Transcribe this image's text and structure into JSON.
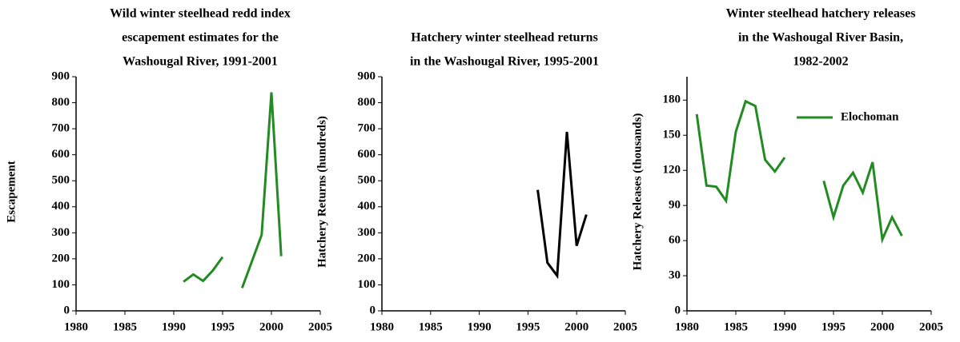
{
  "chart_data": [
    {
      "type": "line",
      "title": [
        "Wild winter steelhead redd index",
        "escapement estimates for the",
        "Washougal River, 1991-2001"
      ],
      "ylabel": "Escapement",
      "x": [
        1991,
        1992,
        1993,
        1994,
        1995,
        1996,
        1997,
        1998,
        1999,
        2000,
        2001
      ],
      "series": [
        {
          "color": "#228b22",
          "values": [
            112,
            140,
            115,
            155,
            207,
            null,
            88,
            190,
            292,
            840,
            210
          ]
        }
      ],
      "xlim": [
        1980,
        2005
      ],
      "xticks": [
        1980,
        1985,
        1990,
        1995,
        2000,
        2005
      ],
      "ylim": [
        0,
        900
      ],
      "yticks": [
        0,
        100,
        200,
        300,
        400,
        500,
        600,
        700,
        800,
        900
      ]
    },
    {
      "type": "line",
      "title": [
        "Hatchery winter steelhead returns",
        "in the Washougal River, 1995-2001"
      ],
      "ylabel": "Hatchery Returns (hundreds)",
      "x": [
        1996,
        1997,
        1998,
        1999,
        2000,
        2001
      ],
      "series": [
        {
          "color": "#000000",
          "values": [
            465,
            185,
            135,
            688,
            250,
            370
          ]
        }
      ],
      "xlim": [
        1980,
        2005
      ],
      "xticks": [
        1980,
        1985,
        1990,
        1995,
        2000,
        2005
      ],
      "ylim": [
        0,
        900
      ],
      "yticks": [
        0,
        100,
        200,
        300,
        400,
        500,
        600,
        700,
        800,
        900
      ]
    },
    {
      "type": "line",
      "title": [
        "Winter steelhead hatchery releases",
        "in the Washougal River Basin,",
        "1982-2002"
      ],
      "ylabel": "Hatchery Releases (thousands)",
      "x": [
        1981,
        1982,
        1983,
        1984,
        1985,
        1986,
        1987,
        1988,
        1989,
        1990,
        1991,
        1992,
        1993,
        1994,
        1995,
        1996,
        1997,
        1998,
        1999,
        2000,
        2001,
        2002
      ],
      "series": [
        {
          "name": "Elochoman",
          "color": "#228b22",
          "values": [
            168,
            107,
            106,
            94,
            153,
            179,
            175,
            129,
            119,
            131,
            null,
            null,
            null,
            111,
            80,
            107,
            118,
            101,
            127,
            61,
            80,
            64
          ]
        }
      ],
      "xlim": [
        1980,
        2005
      ],
      "xticks": [
        1980,
        1985,
        1990,
        1995,
        2000,
        2005
      ],
      "ylim": [
        0,
        200
      ],
      "yticks": [
        0,
        30,
        60,
        90,
        120,
        150,
        180
      ],
      "legend": "upper right"
    }
  ]
}
